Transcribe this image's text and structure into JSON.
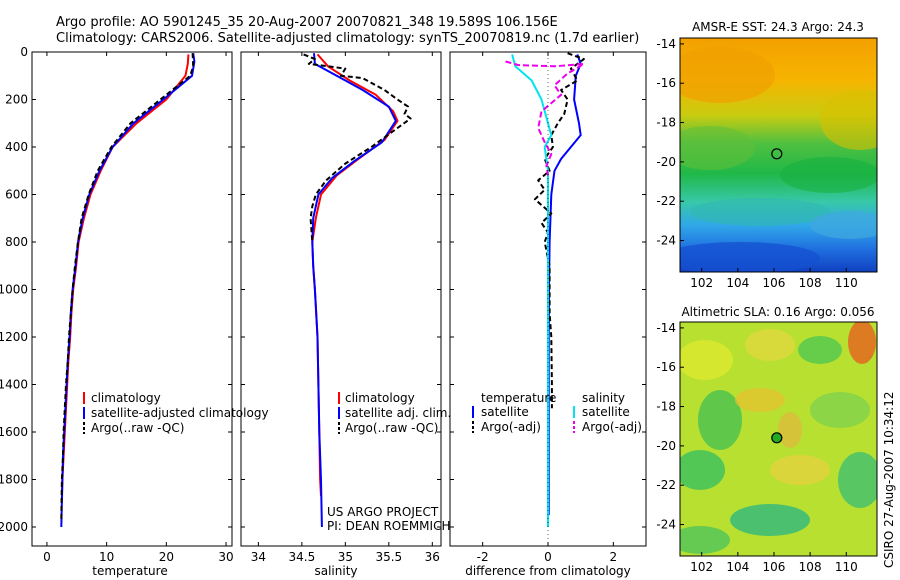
{
  "header": {
    "line1": "Argo profile: AO 5901245_35 20-Aug-2007 20070821_348 19.589S 106.156E",
    "line2": "Climatology: CARS2006. Satellite-adjusted climatology: synTS_20070819.nc (1.7d earlier)"
  },
  "colors": {
    "climatology": "#ff0000",
    "satellite": "#0000ff",
    "argo": "#000000",
    "satellite_salinity": "#00e5ee",
    "argo_salinity": "#ee00ee",
    "map_marker_sst": "#000000",
    "map_marker_sla": "#22aa22"
  },
  "chart_data": [
    {
      "type": "line",
      "name": "temperature-profile",
      "xlabel": "temperature",
      "ylabel": "",
      "xlim": [
        -2.5,
        31
      ],
      "ylim": [
        2080,
        0
      ],
      "xticks": [
        0,
        10,
        20,
        30
      ],
      "xtick_labels": [
        "0",
        "10",
        "20",
        "30"
      ],
      "yticks": [
        0,
        200,
        400,
        600,
        800,
        1000,
        1200,
        1400,
        1600,
        1800,
        2000
      ],
      "ytick_labels": [
        "0",
        "200",
        "400",
        "600",
        "800",
        "1000",
        "1200",
        "1400",
        "1600",
        "1800",
        "2000"
      ],
      "legend": {
        "entries": [
          "climatology",
          "satellite-adjusted climatology",
          "Argo(..raw -QC)"
        ],
        "placement": "lower-right"
      },
      "series": [
        {
          "name": "climatology",
          "color": "#ff0000",
          "dash": "",
          "points": [
            [
              23.7,
              10
            ],
            [
              23.6,
              50
            ],
            [
              23.2,
              100
            ],
            [
              20,
              200
            ],
            [
              15,
              300
            ],
            [
              11,
              400
            ],
            [
              9,
              500
            ],
            [
              7.3,
              600
            ],
            [
              6.2,
              700
            ],
            [
              5.3,
              800
            ],
            [
              4.9,
              900
            ],
            [
              4.4,
              1000
            ],
            [
              4.1,
              1100
            ],
            [
              3.9,
              1200
            ],
            [
              3.6,
              1300
            ],
            [
              3.4,
              1400
            ],
            [
              3.2,
              1500
            ],
            [
              3.0,
              1600
            ],
            [
              2.8,
              1700
            ],
            [
              2.6,
              1800
            ],
            [
              2.5,
              1870
            ]
          ]
        },
        {
          "name": "satellite-adjusted climatology",
          "color": "#0000ff",
          "dash": "",
          "points": [
            [
              24.5,
              5
            ],
            [
              24.7,
              40
            ],
            [
              24.3,
              100
            ],
            [
              19.5,
              200
            ],
            [
              14.5,
              300
            ],
            [
              11,
              400
            ],
            [
              8.8,
              500
            ],
            [
              7.1,
              600
            ],
            [
              6,
              700
            ],
            [
              5.2,
              800
            ],
            [
              4.8,
              900
            ],
            [
              4.3,
              1000
            ],
            [
              4.0,
              1100
            ],
            [
              3.8,
              1200
            ],
            [
              3.5,
              1300
            ],
            [
              3.3,
              1400
            ],
            [
              3.1,
              1500
            ],
            [
              2.9,
              1600
            ],
            [
              2.7,
              1700
            ],
            [
              2.6,
              1800
            ],
            [
              2.4,
              2000
            ]
          ]
        },
        {
          "name": "Argo(..raw -QC)",
          "color": "#000000",
          "dash": "5,3",
          "points": [
            [
              24.4,
              5
            ],
            [
              24.5,
              60
            ],
            [
              24,
              100
            ],
            [
              19,
              200
            ],
            [
              14,
              300
            ],
            [
              10.8,
              400
            ],
            [
              8.5,
              500
            ],
            [
              7,
              600
            ],
            [
              5.8,
              700
            ],
            [
              5.2,
              800
            ],
            [
              4.7,
              900
            ],
            [
              4.3,
              1000
            ],
            [
              4.0,
              1100
            ],
            [
              3.7,
              1200
            ],
            [
              3.5,
              1300
            ],
            [
              3.2,
              1400
            ],
            [
              3.0,
              1500
            ],
            [
              2.8,
              1600
            ],
            [
              2.7,
              1700
            ],
            [
              2.5,
              1800
            ],
            [
              2.4,
              1970
            ]
          ]
        }
      ]
    },
    {
      "type": "line",
      "name": "salinity-profile",
      "xlabel": "salinity",
      "xlim": [
        33.8,
        36.1
      ],
      "ylim": [
        2080,
        0
      ],
      "xticks": [
        34,
        34.5,
        35,
        35.5,
        36
      ],
      "xtick_labels": [
        "34",
        "34.5",
        "35",
        "35.5",
        "36"
      ],
      "legend": {
        "entries": [
          "climatology",
          "satellite adj. clim.",
          "Argo(..raw -QC)"
        ],
        "placement": "lower-right"
      },
      "annotations": [
        "US ARGO PROJECT",
        "PI: DEAN ROEMMICH"
      ],
      "series": [
        {
          "name": "climatology",
          "color": "#ff0000",
          "dash": "",
          "points": [
            [
              34.68,
              10
            ],
            [
              34.8,
              60
            ],
            [
              35.05,
              120
            ],
            [
              35.35,
              180
            ],
            [
              35.55,
              250
            ],
            [
              35.6,
              290
            ],
            [
              35.45,
              370
            ],
            [
              35.15,
              450
            ],
            [
              34.9,
              520
            ],
            [
              34.72,
              600
            ],
            [
              34.66,
              700
            ],
            [
              34.62,
              800
            ],
            [
              34.63,
              900
            ],
            [
              34.65,
              1000
            ],
            [
              34.68,
              1200
            ],
            [
              34.69,
              1400
            ],
            [
              34.7,
              1600
            ],
            [
              34.71,
              1800
            ],
            [
              34.72,
              1870
            ]
          ]
        },
        {
          "name": "satellite adj. clim.",
          "color": "#0000ff",
          "dash": "",
          "points": [
            [
              34.64,
              5
            ],
            [
              34.65,
              50
            ],
            [
              34.9,
              100
            ],
            [
              35.2,
              160
            ],
            [
              35.5,
              230
            ],
            [
              35.58,
              290
            ],
            [
              35.42,
              380
            ],
            [
              35.1,
              460
            ],
            [
              34.85,
              530
            ],
            [
              34.69,
              600
            ],
            [
              34.63,
              700
            ],
            [
              34.62,
              800
            ],
            [
              34.63,
              900
            ],
            [
              34.65,
              1000
            ],
            [
              34.68,
              1200
            ],
            [
              34.69,
              1400
            ],
            [
              34.7,
              1600
            ],
            [
              34.72,
              1800
            ],
            [
              34.73,
              2000
            ]
          ]
        },
        {
          "name": "Argo(..raw -QC)",
          "color": "#000000",
          "dash": "5,3",
          "points": [
            [
              34.52,
              10
            ],
            [
              34.65,
              30
            ],
            [
              34.58,
              50
            ],
            [
              34.8,
              60
            ],
            [
              35.0,
              70
            ],
            [
              34.95,
              100
            ],
            [
              35.2,
              110
            ],
            [
              35.3,
              130
            ],
            [
              35.45,
              160
            ],
            [
              35.6,
              200
            ],
            [
              35.72,
              230
            ],
            [
              35.68,
              260
            ],
            [
              35.75,
              280
            ],
            [
              35.6,
              320
            ],
            [
              35.3,
              400
            ],
            [
              35.0,
              470
            ],
            [
              34.78,
              540
            ],
            [
              34.66,
              600
            ],
            [
              34.62,
              650
            ],
            [
              34.6,
              700
            ],
            [
              34.62,
              800
            ]
          ]
        }
      ]
    },
    {
      "type": "line",
      "name": "difference-from-climatology",
      "xlabel": "difference from climatology",
      "xlim": [
        -3,
        3
      ],
      "ylim": [
        2080,
        0
      ],
      "xticks": [
        -2,
        0,
        2
      ],
      "xtick_labels": [
        "-2",
        "0",
        "2"
      ],
      "legend": {
        "groups": [
          {
            "heading": "temperature",
            "entries": [
              "satellite",
              "Argo(-adj)"
            ]
          },
          {
            "heading": "salinity",
            "entries": [
              "satellite",
              "Argo(-adj)"
            ]
          }
        ],
        "placement": "lower-center"
      },
      "series": [
        {
          "name": "temperature satellite",
          "color": "#0000ff",
          "dash": "",
          "points": [
            [
              0.9,
              10
            ],
            [
              1.0,
              50
            ],
            [
              0.85,
              100
            ],
            [
              0.8,
              200
            ],
            [
              0.95,
              300
            ],
            [
              1.0,
              350
            ],
            [
              0.7,
              400
            ],
            [
              0.4,
              450
            ],
            [
              0.2,
              500
            ],
            [
              0.1,
              600
            ],
            [
              0.05,
              800
            ],
            [
              0.03,
              1000
            ],
            [
              0.02,
              1200
            ],
            [
              0.02,
              1400
            ],
            [
              0.02,
              1600
            ],
            [
              0.02,
              1800
            ],
            [
              0.02,
              1950
            ]
          ]
        },
        {
          "name": "temperature Argo(-adj)",
          "color": "#000000",
          "dash": "5,3",
          "points": [
            [
              0.6,
              5
            ],
            [
              1.1,
              30
            ],
            [
              0.7,
              70
            ],
            [
              0.9,
              120
            ],
            [
              0.4,
              160
            ],
            [
              0.6,
              200
            ],
            [
              0.5,
              260
            ],
            [
              0.3,
              300
            ],
            [
              0.1,
              350
            ],
            [
              0.15,
              400
            ],
            [
              -0.1,
              450
            ],
            [
              0.05,
              500
            ],
            [
              -0.3,
              540
            ],
            [
              -0.1,
              580
            ],
            [
              -0.4,
              620
            ],
            [
              0.1,
              680
            ],
            [
              -0.2,
              720
            ],
            [
              0.0,
              760
            ],
            [
              -0.1,
              800
            ],
            [
              0.05,
              900
            ],
            [
              0.05,
              1100
            ],
            [
              0.1,
              1200
            ],
            [
              0.12,
              1400
            ],
            [
              0.12,
              1500
            ]
          ]
        },
        {
          "name": "salinity satellite",
          "color": "#00e5ee",
          "dash": "",
          "points": [
            [
              -1.1,
              10
            ],
            [
              -1.0,
              60
            ],
            [
              -0.5,
              120
            ],
            [
              -0.2,
              200
            ],
            [
              0.0,
              300
            ],
            [
              0.1,
              350
            ],
            [
              -0.1,
              400
            ],
            [
              0.0,
              500
            ],
            [
              0.0,
              700
            ],
            [
              0.0,
              1000
            ],
            [
              0.0,
              1400
            ],
            [
              0.0,
              1800
            ],
            [
              0.0,
              2000
            ]
          ]
        },
        {
          "name": "salinity Argo(-adj)",
          "color": "#ee00ee",
          "dash": "6,3",
          "points": [
            [
              -1.3,
              40
            ],
            [
              -0.9,
              55
            ],
            [
              0.2,
              60
            ],
            [
              1.1,
              50
            ],
            [
              0.6,
              90
            ],
            [
              0.2,
              140
            ],
            [
              0.4,
              180
            ],
            [
              -0.2,
              250
            ],
            [
              -0.3,
              320
            ],
            [
              -0.1,
              380
            ],
            [
              0.1,
              430
            ],
            [
              -0.05,
              480
            ],
            [
              0.0,
              520
            ]
          ]
        }
      ]
    }
  ],
  "maps": [
    {
      "name": "sst-map",
      "title": "AMSR-E SST: 24.3 Argo: 24.3",
      "xticks": [
        102,
        104,
        106,
        108,
        110
      ],
      "yticks": [
        -14,
        -16,
        -18,
        -20,
        -22,
        -24
      ],
      "xlim": [
        100.8,
        111.7
      ],
      "ylim": [
        -25.6,
        -13.7
      ],
      "marker": {
        "lon": 106.156,
        "lat": -19.589
      }
    },
    {
      "name": "sla-map",
      "title": "Altimetric SLA: 0.16 Argo: 0.056",
      "xticks": [
        102,
        104,
        106,
        108,
        110
      ],
      "yticks": [
        -14,
        -16,
        -18,
        -20,
        -22,
        -24
      ],
      "xlim": [
        100.8,
        111.7
      ],
      "ylim": [
        -25.6,
        -13.7
      ],
      "marker": {
        "lon": 106.156,
        "lat": -19.589
      }
    }
  ],
  "side_label": "CSIRO 27-Aug-2007 10:34:12"
}
